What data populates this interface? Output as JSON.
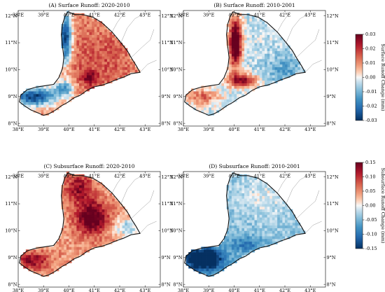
{
  "figure": {
    "panels": [
      {
        "id": "A",
        "title": "(A) Surface Runoff: 2020-2010",
        "pattern": "A",
        "colorbar": "surface"
      },
      {
        "id": "B",
        "title": "(B) Surface Runoff: 2010-2001",
        "pattern": "B",
        "colorbar": "surface"
      },
      {
        "id": "C",
        "title": "(C) Subsurface Runoff: 2020-2010",
        "pattern": "C",
        "colorbar": "subsurface"
      },
      {
        "id": "D",
        "title": "(D) Subsurface Runoff: 2010-2001",
        "pattern": "D",
        "colorbar": "subsurface"
      }
    ],
    "x_ticks": [
      "38°E",
      "39°E",
      "40°E",
      "41°E",
      "42°E",
      "43°E"
    ],
    "y_ticks": [
      "8°N",
      "9°N",
      "10°N",
      "11°N",
      "12°N"
    ],
    "colorbars": {
      "surface": {
        "label": "Surface Runoff Change (mm)",
        "ticks": [
          "0.03",
          "0.02",
          "0.01",
          "0.00",
          "-0.01",
          "-0.02",
          "-0.03"
        ],
        "range": [
          -0.03,
          0.03
        ],
        "colormap": "RdBu_r"
      },
      "subsurface": {
        "label": "Subsurface Runoff Change (mm)",
        "ticks": [
          "0.15",
          "0.10",
          "0.05",
          "0.00",
          "-0.05",
          "-0.10",
          "-0.15"
        ],
        "range": [
          -0.15,
          0.15
        ],
        "colormap": "RdBu_r"
      }
    },
    "colors": {
      "dark_red": "#67001f",
      "red": "#c0392b",
      "light_red": "#f4a582",
      "white": "#f7f7f7",
      "light_blue": "#92c5de",
      "blue": "#2166ac",
      "dark_blue": "#053061",
      "boundary": "#111111",
      "border_lines": "#999999"
    }
  },
  "chart_data": [
    {
      "type": "heatmap",
      "title": "(A) Surface Runoff: 2020-2010",
      "x_range_deg": [
        38,
        43.6
      ],
      "y_range_deg": [
        7.9,
        12.2
      ],
      "value_range": [
        -0.03,
        0.03
      ],
      "colorbar_label": "Surface Runoff Change (mm)",
      "description_of_values": "Mostly positive (0.005 to 0.01) over east and center; strong negative (-0.03) along northwestern escarpment near 39.8°E, 11-12°N and south-western lowlands near 38-39.5°E, 9°N"
    },
    {
      "type": "heatmap",
      "title": "(B) Surface Runoff: 2010-2001",
      "x_range_deg": [
        38,
        43.6
      ],
      "y_range_deg": [
        7.9,
        12.2
      ],
      "value_range": [
        -0.03,
        0.03
      ],
      "colorbar_label": "Surface Runoff Change (mm)",
      "description_of_values": "Strong positive (0.03) along western escarpment near 40°E, 10-12°N and along south-central band; slight negative elsewhere"
    },
    {
      "type": "heatmap",
      "title": "(C) Subsurface Runoff: 2020-2010",
      "x_range_deg": [
        38,
        43.6
      ],
      "y_range_deg": [
        7.9,
        12.2
      ],
      "value_range": [
        -0.15,
        0.15
      ],
      "colorbar_label": "Subsurface Runoff Change (mm)",
      "description_of_values": "Mostly positive (0.05 to 0.15), strongest around 40.5-41.5°E, 10-11°N; weak negative in far east"
    },
    {
      "type": "heatmap",
      "title": "(D) Subsurface Runoff: 2010-2001",
      "x_range_deg": [
        38,
        43.6
      ],
      "y_range_deg": [
        7.9,
        12.2
      ],
      "value_range": [
        -0.15,
        0.15
      ],
      "colorbar_label": "Subsurface Runoff Change (mm)",
      "description_of_values": "Mostly negative, strongest (-0.15) in south-western lowlands near 38-39.5°E, 8.7-9.3°N; near zero in north-east"
    }
  ]
}
